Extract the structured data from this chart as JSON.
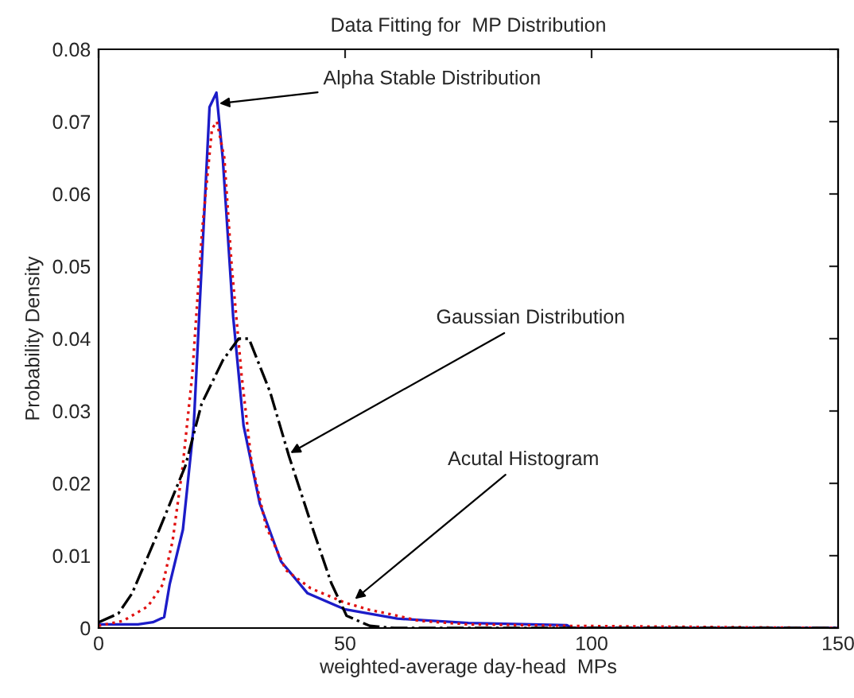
{
  "chart_data": {
    "type": "line",
    "title": "Data Fitting for  MP Distribution",
    "xlabel": "weighted-average day-head  MPs",
    "ylabel": "Probability Density",
    "xlim": [
      0,
      150
    ],
    "xticks": [
      0,
      50,
      100,
      150
    ],
    "ylim": [
      0,
      0.08
    ],
    "yticks": [
      0,
      0.01,
      0.02,
      0.03,
      0.04,
      0.05,
      0.06,
      0.07,
      0.08
    ],
    "grid": false,
    "series": [
      {
        "color": "#1c1cc8",
        "line_style": "solid",
        "x": [
          0,
          8,
          11,
          13.3,
          14.4,
          17.1,
          19.3,
          20.9,
          22.5,
          23.9,
          25.2,
          27.3,
          29.4,
          32.7,
          37,
          42.4,
          49.9,
          60.6,
          75,
          95,
          96,
          150
        ],
        "values": [
          0.0005,
          0.0005,
          0.0008,
          0.0015,
          0.006,
          0.0136,
          0.028,
          0.05,
          0.072,
          0.074,
          0.0648,
          0.043,
          0.028,
          0.0172,
          0.0092,
          0.0048,
          0.0026,
          0.0013,
          0.0007,
          0.0004,
          0,
          0
        ]
      },
      {
        "color": "#e01010",
        "line_style": "dotted",
        "x": [
          0,
          5,
          10,
          13,
          15,
          17,
          19,
          21,
          23,
          24,
          25.5,
          27,
          29,
          31,
          34,
          38,
          43,
          50,
          55,
          60,
          65,
          75,
          95,
          150
        ],
        "values": [
          0.0003,
          0.001,
          0.003,
          0.006,
          0.012,
          0.022,
          0.035,
          0.055,
          0.069,
          0.07,
          0.065,
          0.05,
          0.035,
          0.023,
          0.014,
          0.008,
          0.0055,
          0.0035,
          0.0025,
          0.0018,
          0.001,
          0.0005,
          0.0003,
          0
        ]
      },
      {
        "color": "#000000",
        "line_style": "dashdot",
        "x": [
          0,
          4,
          6.8,
          12.3,
          17.6,
          20.9,
          25.2,
          28.4,
          30.5,
          34.8,
          38.6,
          43.5,
          47.2,
          50.3,
          55,
          60,
          150
        ],
        "values": [
          0.0008,
          0.002,
          0.0048,
          0.0136,
          0.0224,
          0.031,
          0.037,
          0.04,
          0.04,
          0.0326,
          0.0238,
          0.0136,
          0.0062,
          0.0017,
          0.0003,
          0,
          0
        ]
      }
    ],
    "annotations": [
      {
        "text": "Alpha Stable Distribution",
        "x": 24.5,
        "y": 0.0725
      },
      {
        "text": "Gaussian Distribution",
        "x": 38.9,
        "y": 0.0242
      },
      {
        "text": "Acutal Histogram",
        "x": 52,
        "y": 0.004
      }
    ]
  }
}
